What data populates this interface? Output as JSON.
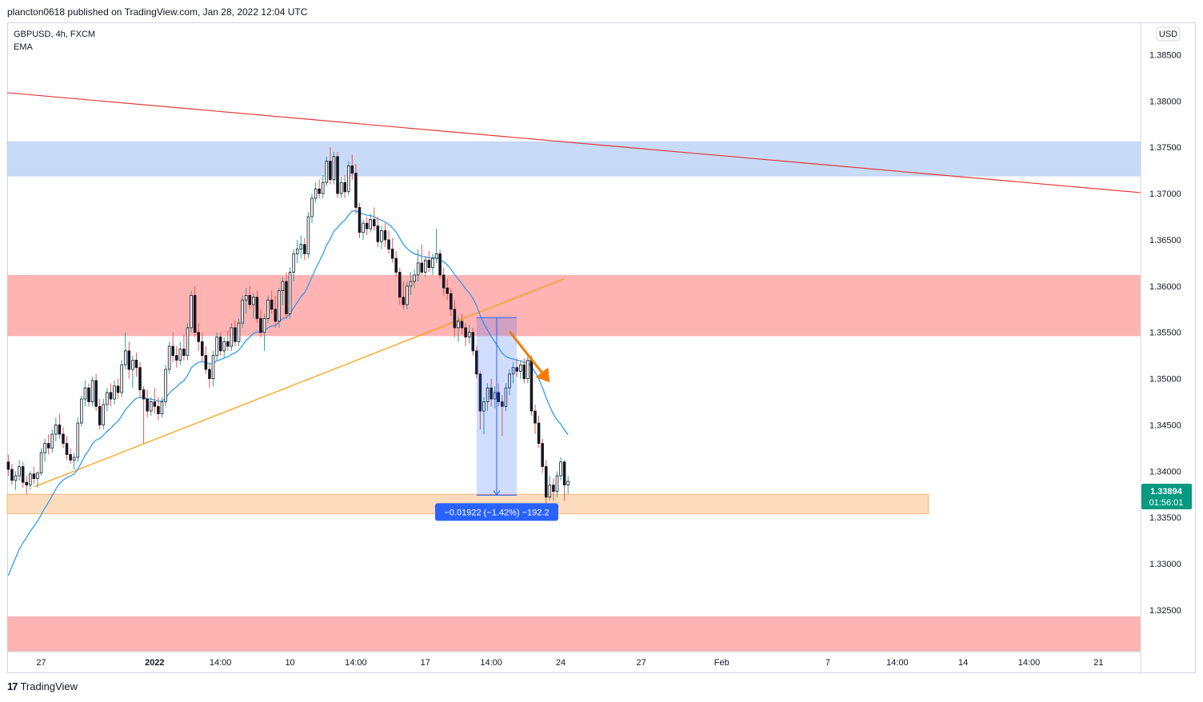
{
  "header": {
    "published": "plancton0618 published on TradingView.com, Jan 28, 2022 12:04 UTC"
  },
  "footer": {
    "brand": "TradingView",
    "brand_mark": "17"
  },
  "legend": {
    "symbol": "GBPUSD, 4h, FXCM",
    "indicator": "EMA"
  },
  "currency": "USD",
  "price_label": {
    "price": "1.33894",
    "countdown": "01:56:01"
  },
  "measure_label": "−0.01922 (−1.42%) −192.2",
  "colors": {
    "up": "#26a69a",
    "down": "#ef5350",
    "wick_up": "#26a69a",
    "wick_down": "#ef5350",
    "ema": "#2196f3",
    "trend_red": "#e53935",
    "trend_orange": "#ff9800",
    "zone_blue": "#c7daf8",
    "zone_red": "#ffb3b3",
    "zone_orange": "#fcdcbd",
    "arrow": "#f57c00",
    "label_bg": "#2962ff",
    "price_bg": "#089981"
  },
  "chart_data": {
    "type": "candlestick",
    "title": "GBPUSD, 4h, FXCM",
    "ylim": [
      1.3205,
      1.3885
    ],
    "y_ticks": [
      {
        "label": "1.38500",
        "value": 1.385
      },
      {
        "label": "1.38000",
        "value": 1.38
      },
      {
        "label": "1.37500",
        "value": 1.375
      },
      {
        "label": "1.37000",
        "value": 1.37
      },
      {
        "label": "1.36500",
        "value": 1.365
      },
      {
        "label": "1.36000",
        "value": 1.36
      },
      {
        "label": "1.35500",
        "value": 1.355
      },
      {
        "label": "1.35000",
        "value": 1.35
      },
      {
        "label": "1.34500",
        "value": 1.345
      },
      {
        "label": "1.34000",
        "value": 1.34
      },
      {
        "label": "1.33500",
        "value": 1.335
      },
      {
        "label": "1.33000",
        "value": 1.33
      },
      {
        "label": "1.32500",
        "value": 1.325
      }
    ],
    "x_ticks": [
      {
        "label": "27",
        "bar": 9
      },
      {
        "label": "2022",
        "bar": 40
      },
      {
        "label": "14:00",
        "bar": 58
      },
      {
        "label": "10",
        "bar": 77
      },
      {
        "label": "14:00",
        "bar": 95
      },
      {
        "label": "17",
        "bar": 114
      },
      {
        "label": "14:00",
        "bar": 132
      },
      {
        "label": "24",
        "bar": 151
      },
      {
        "label": "27",
        "bar": 173
      },
      {
        "label": "Feb",
        "bar": 195
      },
      {
        "label": "7",
        "bar": 224
      },
      {
        "label": "14:00",
        "bar": 243
      },
      {
        "label": "14",
        "bar": 261
      },
      {
        "label": "14:00",
        "bar": 279
      },
      {
        "label": "21",
        "bar": 298
      }
    ],
    "x_range": [
      -0.3,
      309.5
    ],
    "bold_x_ticks": [
      "2022"
    ],
    "ohlc": [
      [
        1.341,
        1.3418,
        1.3395,
        1.3402
      ],
      [
        1.3402,
        1.3408,
        1.3385,
        1.339
      ],
      [
        1.339,
        1.34,
        1.338,
        1.3395
      ],
      [
        1.3395,
        1.3412,
        1.339,
        1.3405
      ],
      [
        1.3405,
        1.341,
        1.3382,
        1.3388
      ],
      [
        1.3388,
        1.3395,
        1.3375,
        1.3385
      ],
      [
        1.3385,
        1.34,
        1.338,
        1.3397
      ],
      [
        1.3397,
        1.3405,
        1.3386,
        1.3392
      ],
      [
        1.3392,
        1.34,
        1.3382,
        1.3398
      ],
      [
        1.3398,
        1.3425,
        1.3395,
        1.342
      ],
      [
        1.342,
        1.3435,
        1.341,
        1.343
      ],
      [
        1.343,
        1.344,
        1.3418,
        1.3425
      ],
      [
        1.3425,
        1.3445,
        1.342,
        1.344
      ],
      [
        1.344,
        1.3458,
        1.3432,
        1.345
      ],
      [
        1.345,
        1.3462,
        1.3435,
        1.344
      ],
      [
        1.344,
        1.3448,
        1.3425,
        1.343
      ],
      [
        1.343,
        1.3438,
        1.3412,
        1.3418
      ],
      [
        1.3418,
        1.3425,
        1.3408,
        1.3412
      ],
      [
        1.3412,
        1.342,
        1.3402,
        1.3415
      ],
      [
        1.3415,
        1.3458,
        1.341,
        1.3452
      ],
      [
        1.3452,
        1.3482,
        1.3448,
        1.3478
      ],
      [
        1.3478,
        1.3498,
        1.347,
        1.349
      ],
      [
        1.349,
        1.3495,
        1.347,
        1.3475
      ],
      [
        1.3475,
        1.3502,
        1.347,
        1.3498
      ],
      [
        1.3498,
        1.3505,
        1.3465,
        1.347
      ],
      [
        1.347,
        1.3478,
        1.3445,
        1.345
      ],
      [
        1.345,
        1.3478,
        1.3445,
        1.3472
      ],
      [
        1.3472,
        1.349,
        1.3465,
        1.3485
      ],
      [
        1.3485,
        1.3495,
        1.347,
        1.3478
      ],
      [
        1.3478,
        1.3498,
        1.3472,
        1.3492
      ],
      [
        1.3492,
        1.35,
        1.3478,
        1.3485
      ],
      [
        1.3485,
        1.352,
        1.348,
        1.3515
      ],
      [
        1.3515,
        1.355,
        1.351,
        1.353
      ],
      [
        1.353,
        1.354,
        1.35,
        1.351
      ],
      [
        1.351,
        1.3525,
        1.349,
        1.352
      ],
      [
        1.352,
        1.3528,
        1.3502,
        1.3512
      ],
      [
        1.3512,
        1.3518,
        1.348,
        1.3488
      ],
      [
        1.3488,
        1.3492,
        1.343,
        1.3478
      ],
      [
        1.3478,
        1.3488,
        1.3458,
        1.3465
      ],
      [
        1.3465,
        1.348,
        1.346,
        1.3475
      ],
      [
        1.3475,
        1.349,
        1.3462,
        1.347
      ],
      [
        1.347,
        1.348,
        1.3455,
        1.3462
      ],
      [
        1.3462,
        1.348,
        1.3458,
        1.3475
      ],
      [
        1.3475,
        1.3515,
        1.347,
        1.351
      ],
      [
        1.351,
        1.354,
        1.3505,
        1.3535
      ],
      [
        1.3535,
        1.355,
        1.3518,
        1.3525
      ],
      [
        1.3525,
        1.3535,
        1.3512,
        1.352
      ],
      [
        1.352,
        1.354,
        1.3515,
        1.3532
      ],
      [
        1.3532,
        1.3548,
        1.352,
        1.3525
      ],
      [
        1.3525,
        1.356,
        1.352,
        1.3555
      ],
      [
        1.3555,
        1.3595,
        1.355,
        1.359
      ],
      [
        1.359,
        1.36,
        1.3545,
        1.355
      ],
      [
        1.355,
        1.356,
        1.353,
        1.354
      ],
      [
        1.354,
        1.355,
        1.3518,
        1.3525
      ],
      [
        1.3525,
        1.3535,
        1.3505,
        1.351
      ],
      [
        1.351,
        1.3515,
        1.349,
        1.35
      ],
      [
        1.35,
        1.353,
        1.3492,
        1.3525
      ],
      [
        1.3525,
        1.355,
        1.352,
        1.3545
      ],
      [
        1.3545,
        1.355,
        1.3525,
        1.353
      ],
      [
        1.353,
        1.3545,
        1.3522,
        1.354
      ],
      [
        1.354,
        1.3552,
        1.353,
        1.3535
      ],
      [
        1.3535,
        1.356,
        1.353,
        1.3555
      ],
      [
        1.3555,
        1.3562,
        1.3535,
        1.354
      ],
      [
        1.354,
        1.3565,
        1.3535,
        1.356
      ],
      [
        1.356,
        1.359,
        1.3555,
        1.3585
      ],
      [
        1.3585,
        1.3598,
        1.357,
        1.359
      ],
      [
        1.359,
        1.36,
        1.3575,
        1.358
      ],
      [
        1.358,
        1.3592,
        1.3565,
        1.3588
      ],
      [
        1.3588,
        1.3595,
        1.356,
        1.3565
      ],
      [
        1.3565,
        1.3575,
        1.3545,
        1.355
      ],
      [
        1.355,
        1.357,
        1.353,
        1.3565
      ],
      [
        1.3565,
        1.359,
        1.356,
        1.3585
      ],
      [
        1.3585,
        1.3595,
        1.357,
        1.3575
      ],
      [
        1.3575,
        1.359,
        1.3555,
        1.3562
      ],
      [
        1.3562,
        1.3598,
        1.3555,
        1.3595
      ],
      [
        1.3595,
        1.361,
        1.358,
        1.3605
      ],
      [
        1.3605,
        1.3615,
        1.3565,
        1.357
      ],
      [
        1.357,
        1.362,
        1.3565,
        1.3615
      ],
      [
        1.3615,
        1.364,
        1.3605,
        1.3635
      ],
      [
        1.3635,
        1.365,
        1.3625,
        1.364
      ],
      [
        1.364,
        1.3655,
        1.363,
        1.3645
      ],
      [
        1.3645,
        1.3652,
        1.3628,
        1.3635
      ],
      [
        1.3635,
        1.368,
        1.363,
        1.3675
      ],
      [
        1.3675,
        1.37,
        1.3668,
        1.3695
      ],
      [
        1.3695,
        1.3712,
        1.369,
        1.3705
      ],
      [
        1.3705,
        1.3715,
        1.3695,
        1.37
      ],
      [
        1.37,
        1.372,
        1.3695,
        1.3712
      ],
      [
        1.3712,
        1.374,
        1.3708,
        1.3735
      ],
      [
        1.3735,
        1.375,
        1.371,
        1.3715
      ],
      [
        1.3715,
        1.3745,
        1.371,
        1.374
      ],
      [
        1.374,
        1.3745,
        1.3695,
        1.37
      ],
      [
        1.37,
        1.3718,
        1.3695,
        1.3712
      ],
      [
        1.3712,
        1.372,
        1.3695,
        1.3702
      ],
      [
        1.3702,
        1.3735,
        1.3698,
        1.373
      ],
      [
        1.373,
        1.3742,
        1.3715,
        1.3722
      ],
      [
        1.3722,
        1.3732,
        1.3678,
        1.3685
      ],
      [
        1.3685,
        1.369,
        1.3652,
        1.3658
      ],
      [
        1.3658,
        1.3672,
        1.365,
        1.3668
      ],
      [
        1.3668,
        1.3675,
        1.3655,
        1.3662
      ],
      [
        1.3662,
        1.3678,
        1.3658,
        1.3672
      ],
      [
        1.3672,
        1.3685,
        1.366,
        1.3665
      ],
      [
        1.3665,
        1.3675,
        1.3642,
        1.3648
      ],
      [
        1.3648,
        1.3665,
        1.364,
        1.366
      ],
      [
        1.366,
        1.3668,
        1.3642,
        1.365
      ],
      [
        1.365,
        1.366,
        1.3635,
        1.364
      ],
      [
        1.364,
        1.3652,
        1.3625,
        1.363
      ],
      [
        1.363,
        1.3638,
        1.361,
        1.3615
      ],
      [
        1.3615,
        1.362,
        1.358,
        1.3588
      ],
      [
        1.3588,
        1.3605,
        1.3575,
        1.358
      ],
      [
        1.358,
        1.3605,
        1.3575,
        1.36
      ],
      [
        1.36,
        1.3615,
        1.359,
        1.3605
      ],
      [
        1.3605,
        1.3618,
        1.3598,
        1.3612
      ],
      [
        1.3612,
        1.364,
        1.3605,
        1.3625
      ],
      [
        1.3625,
        1.3645,
        1.3612,
        1.3615
      ],
      [
        1.3615,
        1.3632,
        1.361,
        1.3628
      ],
      [
        1.3628,
        1.3638,
        1.3615,
        1.362
      ],
      [
        1.362,
        1.3635,
        1.3612,
        1.363
      ],
      [
        1.363,
        1.3662,
        1.3625,
        1.3635
      ],
      [
        1.3635,
        1.364,
        1.3608,
        1.3612
      ],
      [
        1.3612,
        1.362,
        1.359,
        1.3598
      ],
      [
        1.3598,
        1.3608,
        1.3585,
        1.3592
      ],
      [
        1.3592,
        1.3598,
        1.3568,
        1.3575
      ],
      [
        1.3575,
        1.3585,
        1.3545,
        1.3555
      ],
      [
        1.3555,
        1.3568,
        1.354,
        1.3562
      ],
      [
        1.3562,
        1.357,
        1.3548,
        1.3555
      ],
      [
        1.3555,
        1.356,
        1.3535,
        1.3545
      ],
      [
        1.3545,
        1.3558,
        1.3538,
        1.355
      ],
      [
        1.355,
        1.3555,
        1.3525,
        1.353
      ],
      [
        1.353,
        1.3535,
        1.35,
        1.3505
      ],
      [
        1.3505,
        1.3508,
        1.3445,
        1.3465
      ],
      [
        1.3465,
        1.348,
        1.344,
        1.3475
      ],
      [
        1.3475,
        1.3495,
        1.3465,
        1.349
      ],
      [
        1.349,
        1.35,
        1.347,
        1.3478
      ],
      [
        1.3478,
        1.3492,
        1.3468,
        1.3485
      ],
      [
        1.3485,
        1.3495,
        1.347,
        1.3475
      ],
      [
        1.3475,
        1.3482,
        1.3438,
        1.347
      ],
      [
        1.347,
        1.3495,
        1.3465,
        1.349
      ],
      [
        1.349,
        1.351,
        1.3482,
        1.3505
      ],
      [
        1.3505,
        1.3518,
        1.3495,
        1.3512
      ],
      [
        1.3512,
        1.3522,
        1.3502,
        1.3508
      ],
      [
        1.3508,
        1.352,
        1.35,
        1.3515
      ],
      [
        1.3515,
        1.3522,
        1.3495,
        1.35
      ],
      [
        1.35,
        1.3525,
        1.3495,
        1.352
      ],
      [
        1.352,
        1.3525,
        1.346,
        1.3465
      ],
      [
        1.3465,
        1.3472,
        1.344,
        1.3452
      ],
      [
        1.3452,
        1.346,
        1.3425,
        1.343
      ],
      [
        1.343,
        1.3435,
        1.3398,
        1.3405
      ],
      [
        1.3405,
        1.3412,
        1.336,
        1.3372
      ],
      [
        1.3372,
        1.3395,
        1.3368,
        1.3385
      ],
      [
        1.3385,
        1.3392,
        1.3368,
        1.3378
      ],
      [
        1.3378,
        1.34,
        1.3372,
        1.3395
      ],
      [
        1.3395,
        1.3415,
        1.339,
        1.341
      ],
      [
        1.341,
        1.3412,
        1.3368,
        1.3385
      ],
      [
        1.3385,
        1.3395,
        1.3375,
        1.3389
      ]
    ],
    "ema_period": 20,
    "ema_seed": 1.3275,
    "zones": [
      {
        "name": "resistance-zone-blue",
        "top": 1.3756,
        "bottom": 1.3719,
        "x_start_bar": -0.3,
        "x_end_bar": 309.5
      },
      {
        "name": "supply-zone-red",
        "top": 1.3612,
        "bottom": 1.3546,
        "x_start_bar": -0.3,
        "x_end_bar": 309.5
      },
      {
        "name": "target-zone-orange",
        "top": 1.3375,
        "bottom": 1.3354,
        "x_start_bar": -0.3,
        "x_end_bar": 251.5
      },
      {
        "name": "support-zone-red-bottom",
        "top": 1.3243,
        "bottom": 1.3205,
        "x_start_bar": -0.3,
        "x_end_bar": 309.5
      }
    ],
    "trendlines": [
      {
        "name": "descending-trendline",
        "from": [
          -0.3,
          1.3809
        ],
        "to": [
          309.5,
          1.3701
        ]
      },
      {
        "name": "ascending-trendline",
        "from": [
          7,
          1.3383
        ],
        "to": [
          152,
          1.3608
        ]
      }
    ],
    "measure": {
      "bar_start": 128,
      "bar_end": 139,
      "top": 1.3566,
      "bottom": 1.3374
    },
    "arrow": {
      "from": [
        137,
        1.3551
      ],
      "to": [
        148,
        1.3496
      ]
    }
  }
}
